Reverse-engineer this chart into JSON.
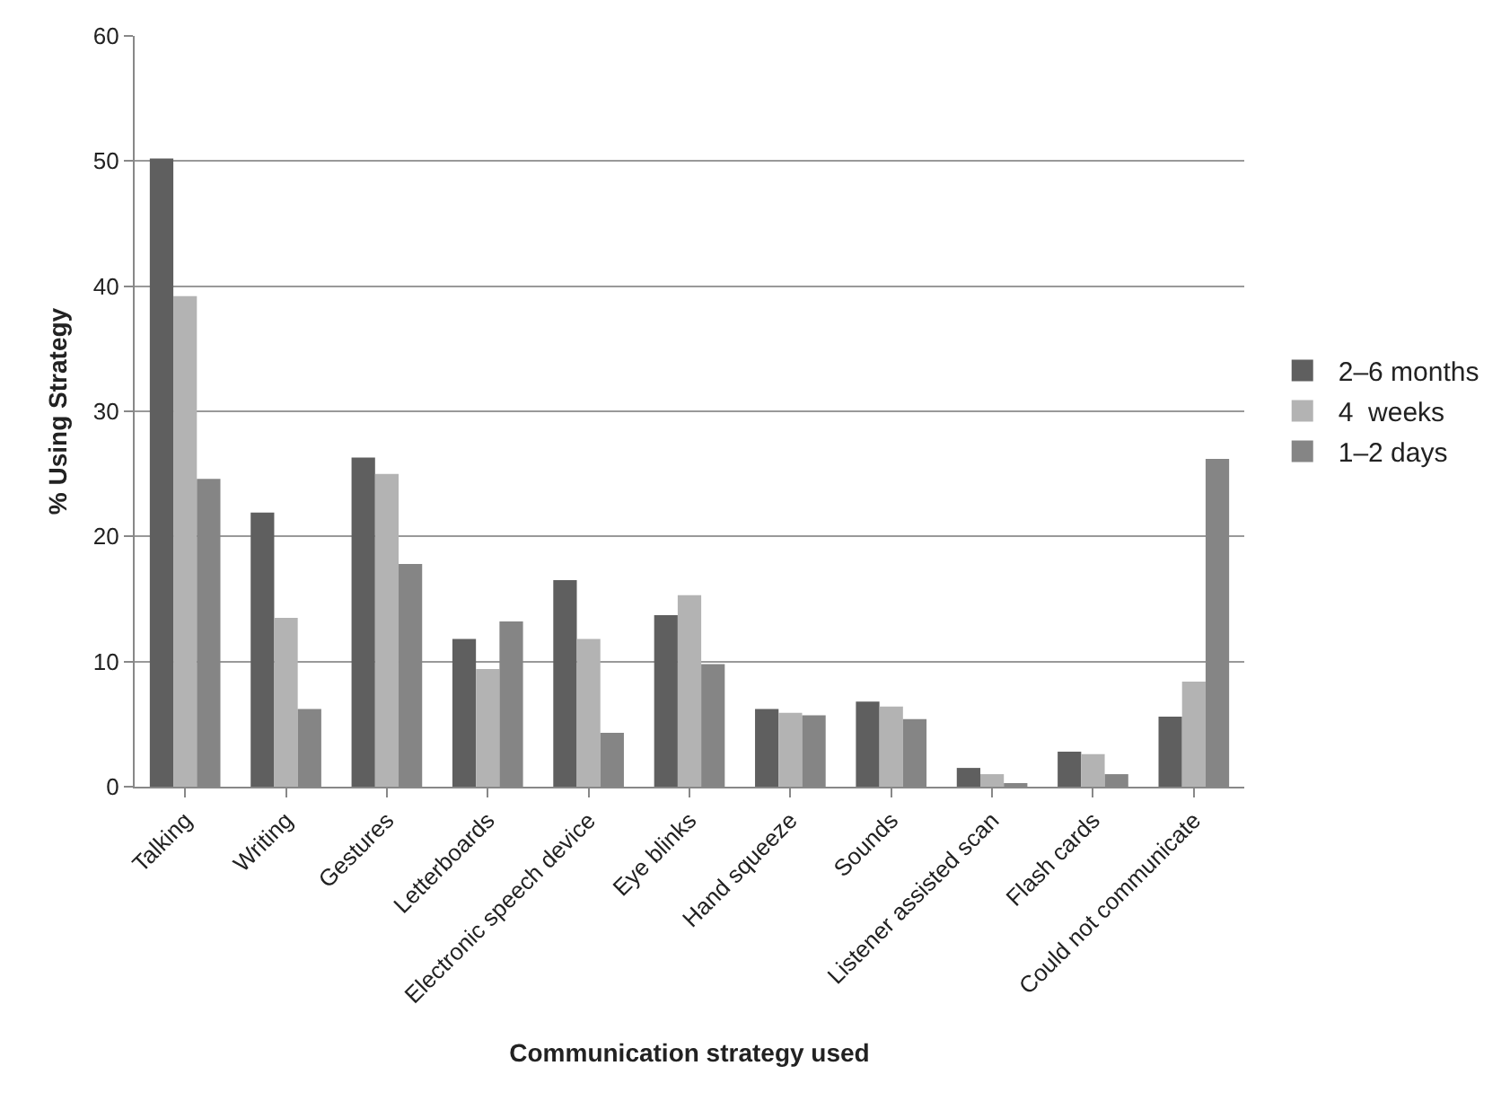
{
  "chart_data": {
    "type": "bar",
    "xlabel": "Communication strategy used",
    "ylabel": "% Using Strategy",
    "categories": [
      "Talking",
      "Writing",
      "Gestures",
      "Letterboards",
      "Electronic speech device",
      "Eye blinks",
      "Hand squeeze",
      "Sounds",
      "Listener assisted scan",
      "Flash cards",
      "Could not communicate"
    ],
    "series": [
      {
        "name": "2–6 months",
        "color": "#5f5f5f",
        "values": [
          50.2,
          21.9,
          26.3,
          11.8,
          16.5,
          13.7,
          6.2,
          6.8,
          1.5,
          2.8,
          5.6
        ]
      },
      {
        "name": "4  weeks",
        "color": "#b3b3b3",
        "values": [
          39.2,
          13.5,
          25,
          9.4,
          11.8,
          15.3,
          5.9,
          6.4,
          1,
          2.6,
          8.4
        ]
      },
      {
        "name": "1–2 days",
        "color": "#858585",
        "values": [
          24.6,
          6.2,
          17.8,
          13.2,
          4.3,
          9.8,
          5.7,
          5.4,
          0.2,
          1,
          26.2
        ]
      }
    ],
    "ylim": [
      0,
      60
    ],
    "yticks": [
      0,
      10,
      20,
      30,
      40,
      50,
      60
    ],
    "grid": "y",
    "legend": "right"
  }
}
